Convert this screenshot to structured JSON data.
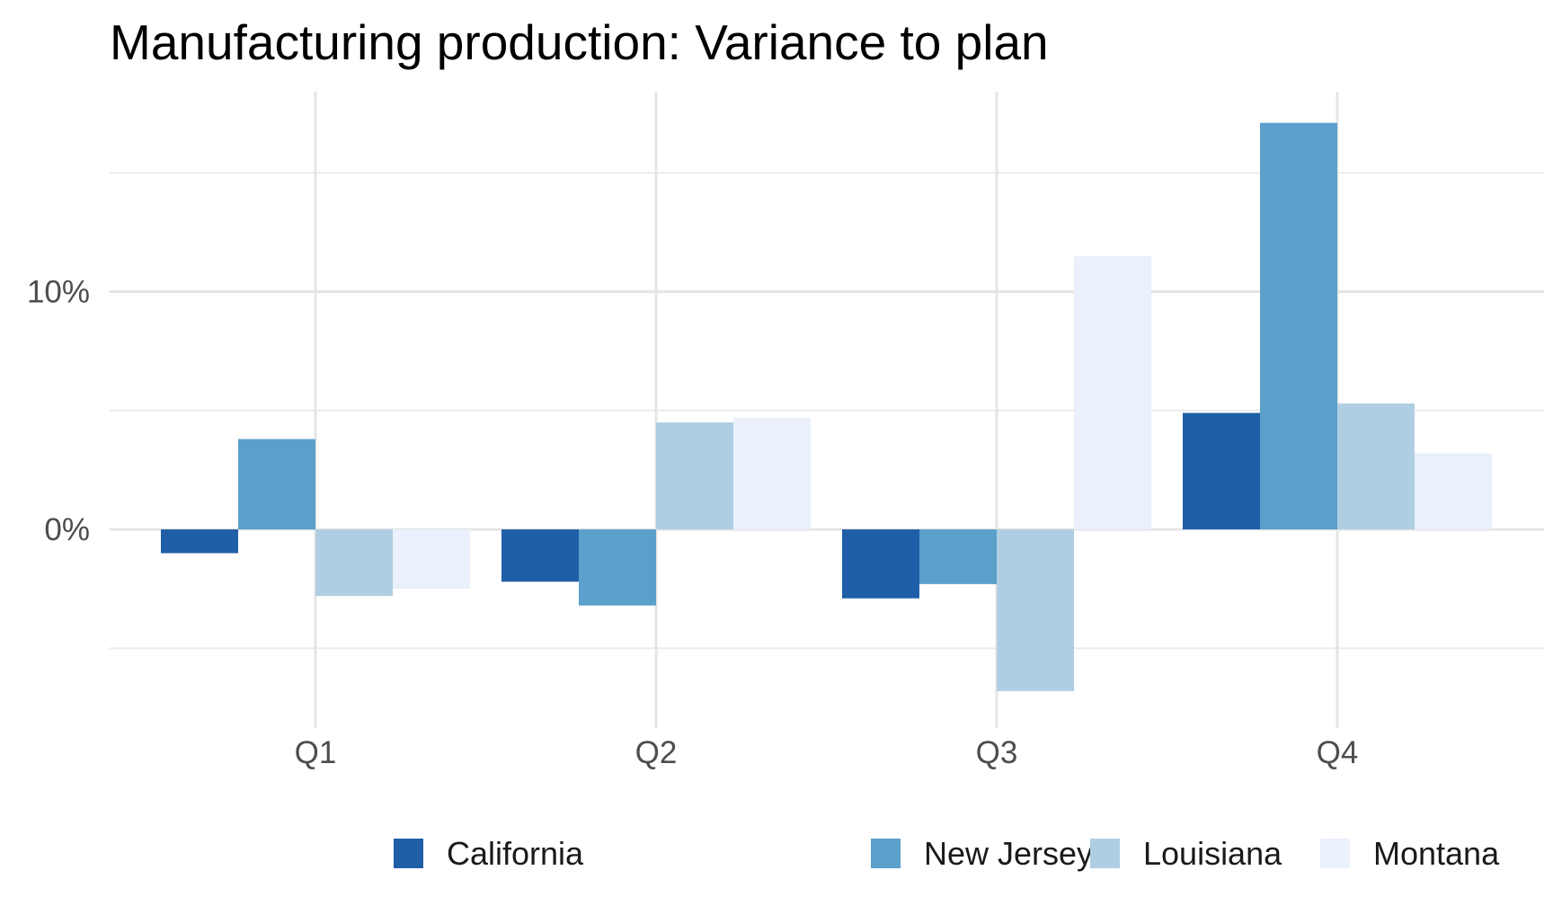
{
  "chart_data": {
    "type": "bar",
    "title": "Manufacturing production: Variance to plan",
    "xlabel": "",
    "ylabel": "",
    "categories": [
      "Q1",
      "Q2",
      "Q3",
      "Q4"
    ],
    "series": [
      {
        "name": "California",
        "color": "#1f5fa8",
        "values": [
          -1.0,
          -2.2,
          -2.9,
          4.9
        ]
      },
      {
        "name": "New Jersey",
        "color": "#5ba0cb",
        "values": [
          3.8,
          -3.2,
          -2.3,
          17.1
        ]
      },
      {
        "name": "Louisiana",
        "color": "#afcee2",
        "values": [
          -2.8,
          4.5,
          -6.8,
          5.3
        ]
      },
      {
        "name": "Montana",
        "color": "#eaf0fc",
        "values": [
          -2.5,
          4.7,
          11.5,
          3.2
        ]
      }
    ],
    "ylim": [
      -8.0,
      18.5
    ],
    "yticks": [
      {
        "value": 0,
        "label": "0%"
      },
      {
        "value": 10,
        "label": "10%"
      }
    ],
    "minor_gridlines": [
      -5,
      5,
      15
    ],
    "grid": true,
    "legend_position": "bottom"
  }
}
